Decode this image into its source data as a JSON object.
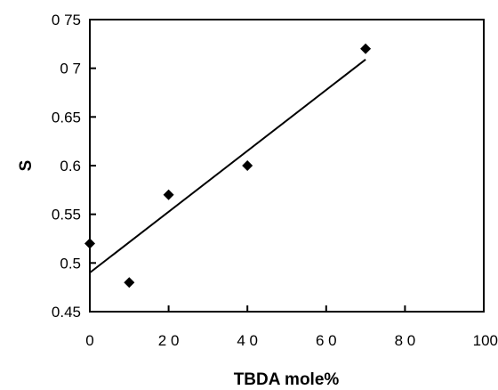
{
  "chart_data": {
    "type": "scatter",
    "xlabel": "TBDA mole%",
    "ylabel": "S",
    "xlim": [
      0,
      100
    ],
    "ylim": [
      0.45,
      0.75
    ],
    "x_ticks": [
      0,
      20,
      40,
      60,
      80,
      100
    ],
    "x_tick_labels": [
      "0",
      "2 0",
      "4 0",
      "6 0",
      "8 0",
      "100"
    ],
    "y_ticks": [
      0.45,
      0.5,
      0.55,
      0.6,
      0.65,
      0.7,
      0.75
    ],
    "y_tick_labels": [
      "0.45",
      "0.5",
      "0.55",
      "0.6",
      "0.65",
      "0 7",
      "0 75"
    ],
    "grid": false,
    "series": [
      {
        "marker": "diamond",
        "points": [
          {
            "x": 0,
            "y": 0.52
          },
          {
            "x": 10,
            "y": 0.48
          },
          {
            "x": 20,
            "y": 0.57
          },
          {
            "x": 40,
            "y": 0.6
          },
          {
            "x": 70,
            "y": 0.72
          }
        ]
      }
    ],
    "fit_line": {
      "x": [
        0,
        70
      ],
      "y": [
        0.49,
        0.709
      ]
    },
    "colors": {
      "marker": "#000000",
      "line": "#000000",
      "axis": "#000000"
    }
  }
}
